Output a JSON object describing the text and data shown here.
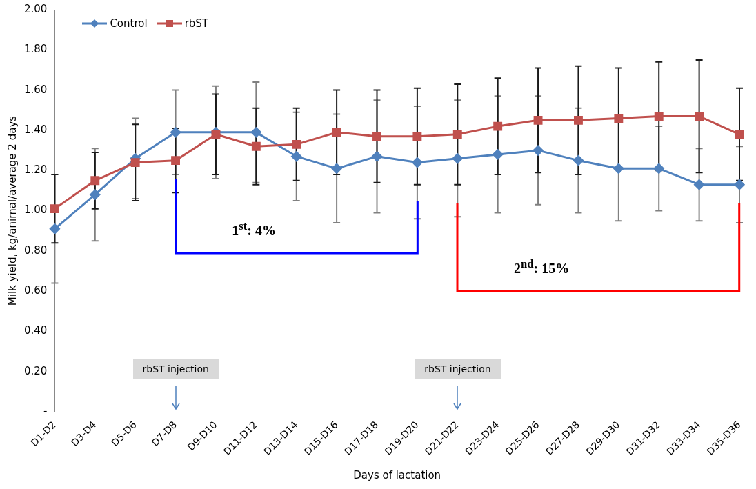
{
  "chart_data": {
    "type": "line",
    "xlabel": "Days of lactation",
    "ylabel": "Milk yield, kg/animal/average 2 days",
    "categories": [
      "D1-D2",
      "D3-D4",
      "D5-D6",
      "D7-D8",
      "D9-D10",
      "D11-D12",
      "D13-D14",
      "D15-D16",
      "D17-D18",
      "D19-D20",
      "D21-D22",
      "D23-D24",
      "D25-D26",
      "D27-D28",
      "D29-D30",
      "D31-D32",
      "D33-D34",
      "D35-D36"
    ],
    "series": [
      {
        "name": "Control",
        "color": "#4f81bd",
        "marker": "diamond",
        "values": [
          0.91,
          1.08,
          1.26,
          1.39,
          1.39,
          1.39,
          1.27,
          1.21,
          1.27,
          1.24,
          1.26,
          1.28,
          1.3,
          1.25,
          1.21,
          1.21,
          1.13,
          1.13
        ],
        "errors": [
          0.27,
          0.23,
          0.2,
          0.21,
          0.23,
          0.25,
          0.22,
          0.27,
          0.28,
          0.28,
          0.29,
          0.29,
          0.27,
          0.26,
          0.26,
          0.21,
          0.18,
          0.19
        ]
      },
      {
        "name": "rbST",
        "color": "#c0504d",
        "marker": "square",
        "values": [
          1.01,
          1.15,
          1.24,
          1.25,
          1.38,
          1.32,
          1.33,
          1.39,
          1.37,
          1.37,
          1.38,
          1.42,
          1.45,
          1.45,
          1.46,
          1.47,
          1.47,
          1.38
        ],
        "errors": [
          0.17,
          0.14,
          0.19,
          0.16,
          0.2,
          0.19,
          0.18,
          0.21,
          0.23,
          0.24,
          0.25,
          0.24,
          0.26,
          0.27,
          0.25,
          0.27,
          0.28,
          0.23
        ]
      }
    ],
    "ylim": [
      0,
      2
    ],
    "yticks": [
      {
        "value": 0,
        "label": "-"
      },
      {
        "value": 0.2,
        "label": "0.20"
      },
      {
        "value": 0.4,
        "label": "0.40"
      },
      {
        "value": 0.6,
        "label": "0.60"
      },
      {
        "value": 0.8,
        "label": "0.80"
      },
      {
        "value": 1,
        "label": "1.00"
      },
      {
        "value": 1.2,
        "label": "1.20"
      },
      {
        "value": 1.4,
        "label": "1.40"
      },
      {
        "value": 1.6,
        "label": "1.60"
      },
      {
        "value": 1.8,
        "label": "1.80"
      },
      {
        "value": 2,
        "label": "2.00"
      }
    ],
    "grid": false,
    "legend": "top left",
    "line_style": "solid",
    "annotations": [
      "1$^{st}$: 4%",
      "2$^{nd}$: 15%",
      "rbST injection",
      "rbST injection"
    ]
  }
}
